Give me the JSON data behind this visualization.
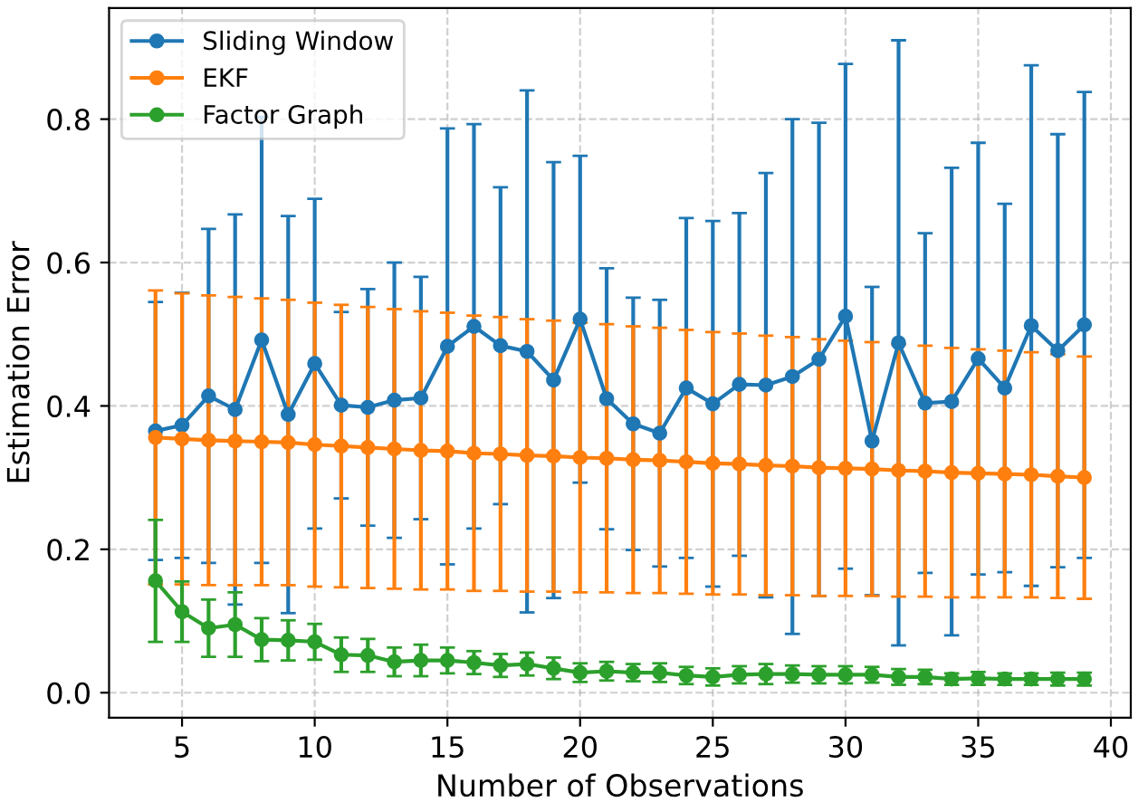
{
  "chart_data": {
    "type": "line",
    "xlabel": "Number of Observations",
    "ylabel": "Estimation Error",
    "x": [
      4,
      5,
      6,
      7,
      8,
      9,
      10,
      11,
      12,
      13,
      14,
      15,
      16,
      17,
      18,
      19,
      20,
      21,
      22,
      23,
      24,
      25,
      26,
      27,
      28,
      29,
      30,
      31,
      32,
      33,
      34,
      35,
      36,
      37,
      38,
      39
    ],
    "series": [
      {
        "name": "Sliding Window",
        "color": "#1f77b4",
        "values": [
          0.365,
          0.373,
          0.414,
          0.395,
          0.492,
          0.388,
          0.459,
          0.401,
          0.398,
          0.408,
          0.411,
          0.483,
          0.511,
          0.484,
          0.476,
          0.436,
          0.521,
          0.41,
          0.375,
          0.362,
          0.425,
          0.403,
          0.43,
          0.429,
          0.441,
          0.465,
          0.525,
          0.351,
          0.488,
          0.404,
          0.406,
          0.466,
          0.425,
          0.512,
          0.477,
          0.513
        ],
        "errors": [
          0.18,
          0.185,
          0.233,
          0.272,
          0.311,
          0.277,
          0.23,
          0.13,
          0.165,
          0.192,
          0.169,
          0.304,
          0.282,
          0.221,
          0.364,
          0.304,
          0.228,
          0.182,
          0.176,
          0.186,
          0.237,
          0.255,
          0.239,
          0.296,
          0.359,
          0.33,
          0.352,
          0.215,
          0.422,
          0.237,
          0.326,
          0.301,
          0.257,
          0.363,
          0.302,
          0.325
        ]
      },
      {
        "name": "EKF",
        "color": "#ff7f0e",
        "values": [
          0.356,
          0.354,
          0.352,
          0.351,
          0.35,
          0.349,
          0.346,
          0.344,
          0.342,
          0.34,
          0.338,
          0.337,
          0.334,
          0.333,
          0.331,
          0.33,
          0.328,
          0.327,
          0.325,
          0.324,
          0.322,
          0.32,
          0.319,
          0.317,
          0.316,
          0.314,
          0.313,
          0.312,
          0.31,
          0.309,
          0.307,
          0.306,
          0.305,
          0.304,
          0.302,
          0.3
        ],
        "errors": [
          0.205,
          0.203,
          0.202,
          0.201,
          0.2,
          0.199,
          0.198,
          0.197,
          0.196,
          0.195,
          0.194,
          0.193,
          0.192,
          0.191,
          0.19,
          0.189,
          0.188,
          0.187,
          0.186,
          0.185,
          0.184,
          0.183,
          0.182,
          0.181,
          0.18,
          0.179,
          0.178,
          0.177,
          0.176,
          0.175,
          0.174,
          0.173,
          0.172,
          0.171,
          0.17,
          0.169
        ]
      },
      {
        "name": "Factor Graph",
        "color": "#2ca02c",
        "values": [
          0.156,
          0.113,
          0.09,
          0.095,
          0.074,
          0.073,
          0.071,
          0.053,
          0.052,
          0.043,
          0.045,
          0.045,
          0.042,
          0.038,
          0.04,
          0.034,
          0.028,
          0.03,
          0.028,
          0.028,
          0.024,
          0.022,
          0.025,
          0.026,
          0.026,
          0.025,
          0.025,
          0.025,
          0.022,
          0.022,
          0.019,
          0.02,
          0.019,
          0.019,
          0.019,
          0.019
        ],
        "errors": [
          0.085,
          0.042,
          0.04,
          0.045,
          0.03,
          0.028,
          0.025,
          0.024,
          0.023,
          0.02,
          0.022,
          0.018,
          0.016,
          0.016,
          0.016,
          0.015,
          0.013,
          0.013,
          0.012,
          0.013,
          0.012,
          0.012,
          0.012,
          0.014,
          0.012,
          0.012,
          0.012,
          0.011,
          0.011,
          0.01,
          0.008,
          0.009,
          0.008,
          0.008,
          0.009,
          0.009
        ]
      }
    ],
    "xlim": [
      2.25,
      40.75
    ],
    "xticks": [
      5,
      10,
      15,
      20,
      25,
      30,
      35,
      40
    ],
    "ylim": [
      -0.035,
      0.955
    ],
    "yticks": [
      {
        "value": 0,
        "label": "0.0"
      },
      0.2,
      0.4,
      0.6,
      0.8
    ],
    "grid": true,
    "legend": "top left",
    "marker": "circle",
    "line_style": "solid"
  }
}
